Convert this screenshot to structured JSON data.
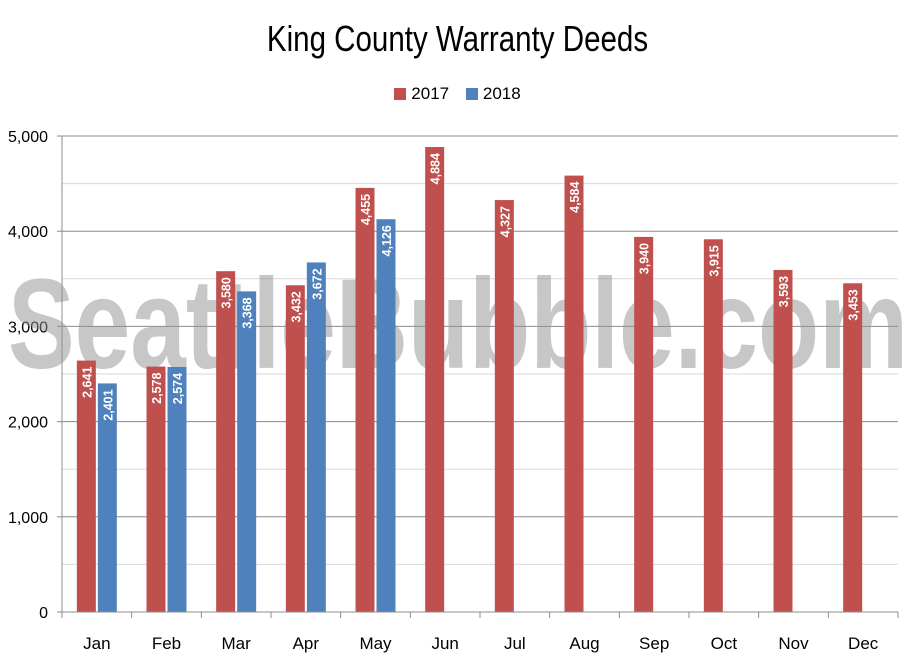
{
  "chart_data": {
    "type": "bar",
    "title": "King County Warranty Deeds",
    "categories": [
      "Jan",
      "Feb",
      "Mar",
      "Apr",
      "May",
      "Jun",
      "Jul",
      "Aug",
      "Sep",
      "Oct",
      "Nov",
      "Dec"
    ],
    "series": [
      {
        "name": "2017",
        "color": "#c0504d",
        "values": [
          2641,
          2578,
          3580,
          3432,
          4455,
          4884,
          4327,
          4584,
          3940,
          3915,
          3593,
          3453
        ],
        "labels": [
          "2,641",
          "2,578",
          "3,580",
          "3,432",
          "4,455",
          "4,884",
          "4,327",
          "4,584",
          "3,940",
          "3,915",
          "3,593",
          "3,453"
        ]
      },
      {
        "name": "2018",
        "color": "#4f81bd",
        "values": [
          2401,
          2574,
          3368,
          3672,
          4126,
          null,
          null,
          null,
          null,
          null,
          null,
          null
        ],
        "labels": [
          "2,401",
          "2,574",
          "3,368",
          "3,672",
          "4,126",
          null,
          null,
          null,
          null,
          null,
          null,
          null
        ]
      }
    ],
    "ylim": [
      0,
      5000
    ],
    "yticks": [
      0,
      1000,
      2000,
      3000,
      4000,
      5000
    ],
    "ytick_labels": [
      "0",
      "1,000",
      "2,000",
      "3,000",
      "4,000",
      "5,000"
    ],
    "grid": true,
    "legend_position": "top"
  },
  "watermark": "SeattleBubble.com"
}
